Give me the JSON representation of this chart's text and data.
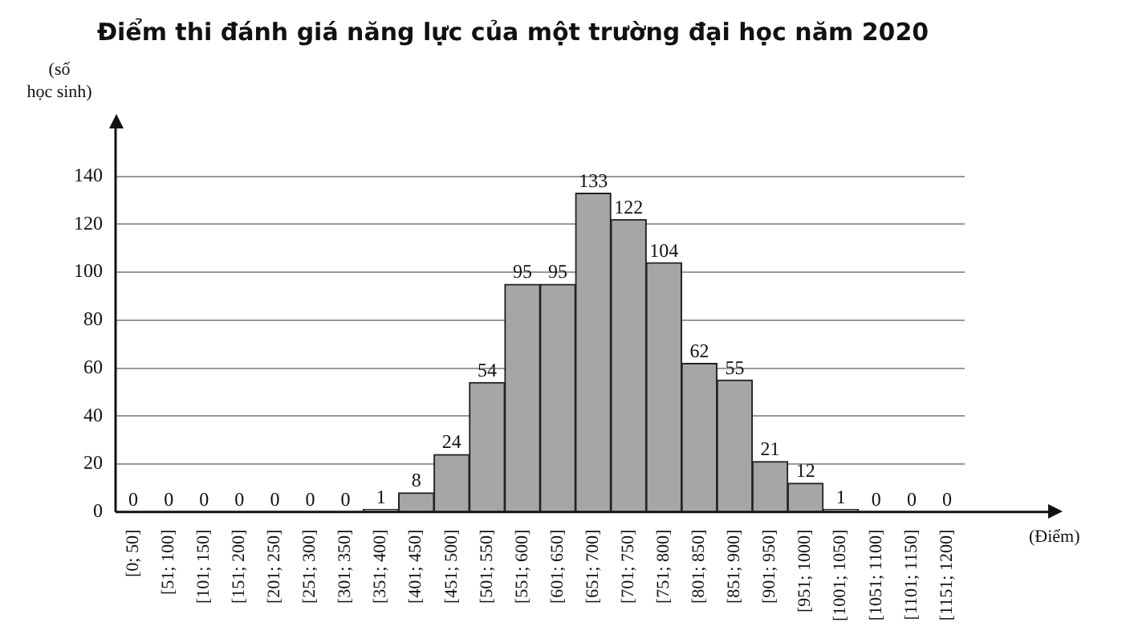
{
  "chart_data": {
    "type": "bar",
    "title": "Điểm thi đánh giá năng lực của một trường đại học năm 2020",
    "xlabel": "(Điểm)",
    "ylabel": "(số học sinh)",
    "categories": [
      "[0; 50]",
      "[51; 100]",
      "[101; 150]",
      "[151; 200]",
      "[201; 250]",
      "[251; 300]",
      "[301; 350]",
      "[351; 400]",
      "[401; 450]",
      "[451; 500]",
      "[501; 550]",
      "[551; 600]",
      "[601; 650]",
      "[651; 700]",
      "[701; 750]",
      "[751; 800]",
      "[801; 850]",
      "[851; 900]",
      "[901; 950]",
      "[951; 1000]",
      "[1001; 1050]",
      "[1051; 1100]",
      "[1101; 1150]",
      "[1151; 1200]"
    ],
    "values": [
      0,
      0,
      0,
      0,
      0,
      0,
      0,
      1,
      8,
      24,
      54,
      95,
      95,
      133,
      122,
      104,
      62,
      55,
      21,
      12,
      1,
      0,
      0,
      0
    ],
    "color": "#a6a6a6",
    "ylim": [
      0,
      160
    ],
    "yticks": [
      0,
      20,
      40,
      60,
      80,
      100,
      120,
      140
    ],
    "grid": "y",
    "data_labels": true,
    "legend": false
  }
}
